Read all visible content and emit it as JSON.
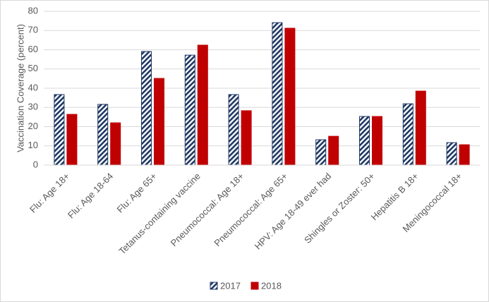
{
  "chart_data": {
    "type": "bar",
    "y_label": "Vaccination Coverage (percent)",
    "categories": [
      "Flu: Age 18+",
      "Flu: Age 18-64",
      "Flu: Age 65+",
      "Tetanus-containing vaccine",
      "Pneumococcal: Age 18+",
      "Pneumococcal: Age 65+",
      "HPV: Age 18-49 ever had",
      "Shingles or Zoster: 50+",
      "Hepatitis B 18+",
      "Meningococcal 18+"
    ],
    "series": [
      {
        "name": "2017",
        "color": "#1f3864",
        "pattern": "hatch",
        "values": [
          36.7,
          31.6,
          59.1,
          57.2,
          36.7,
          74.1,
          13.2,
          25.3,
          31.9,
          11.7
        ]
      },
      {
        "name": "2018",
        "color": "#c00000",
        "values": [
          26.4,
          22.0,
          45.1,
          62.4,
          28.3,
          71.2,
          15.0,
          25.3,
          38.5,
          10.6
        ]
      }
    ],
    "ylim": [
      0,
      80
    ],
    "yticks": [
      0,
      10,
      20,
      30,
      40,
      50,
      60,
      70,
      80
    ],
    "grid": true,
    "legend": "bottom"
  }
}
